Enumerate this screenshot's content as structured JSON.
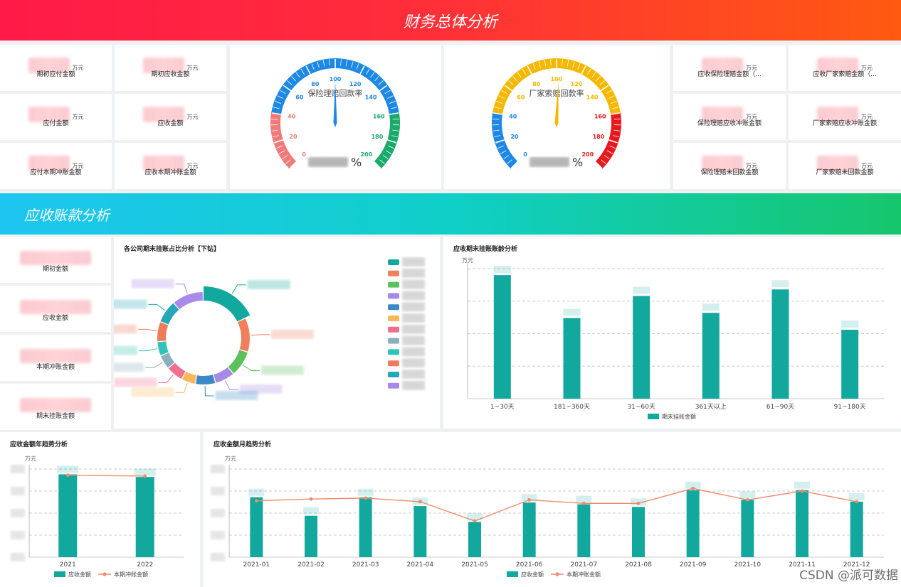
{
  "header": {
    "title": "财务总体分析"
  },
  "section2": {
    "title": "应收账款分析"
  },
  "unit": "万元",
  "left_kpis": [
    {
      "label": "期初应付金额"
    },
    {
      "label": "期初应收金额"
    },
    {
      "label": "应付金额"
    },
    {
      "label": "应收金额"
    },
    {
      "label": "应付本期冲账金额"
    },
    {
      "label": "应收本期冲账金额"
    }
  ],
  "right_kpis": [
    {
      "label": "应收保险理赔金额（..."
    },
    {
      "label": "应收厂家索赔金额（..."
    },
    {
      "label": "保险理赔应收冲账金额"
    },
    {
      "label": "厂家索赔应收冲账金额"
    },
    {
      "label": "保险理赔未回款金额"
    },
    {
      "label": "厂家索赔未回款金额"
    }
  ],
  "gauges": [
    {
      "title": "保险理赔回款率",
      "percent_sign": "%",
      "ticks": [
        "0",
        "20",
        "40",
        "60",
        "80",
        "100",
        "120",
        "140",
        "160",
        "180",
        "200"
      ],
      "value": 100,
      "colors": {
        "low": "#f07a7a",
        "mid": "#1e88e5",
        "high": "#1aaa6a",
        "needle": "#1e88e5"
      }
    },
    {
      "title": "厂家索赔回款率",
      "percent_sign": "%",
      "ticks": [
        "0",
        "20",
        "40",
        "60",
        "80",
        "100",
        "120",
        "140",
        "160",
        "180",
        "200"
      ],
      "value": 102,
      "colors": {
        "low": "#1e88e5",
        "mid": "#f5b800",
        "high": "#e8191e",
        "needle": "#f5b800"
      }
    }
  ],
  "ar_kpis": [
    {
      "label": "期初金额"
    },
    {
      "label": "应收金额"
    },
    {
      "label": "本期冲账金额"
    },
    {
      "label": "期末挂账金额"
    }
  ],
  "donut": {
    "title": "各公司期末挂账占比分析【下钻】",
    "colors": [
      "#13a89e",
      "#f07f5b",
      "#5cc15c",
      "#a68be6",
      "#3b88c8",
      "#f5b95a",
      "#f06f8e",
      "#8ab0bd",
      "#2ec4b6",
      "#ee7c58",
      "#26a6b9",
      "#a98ae8"
    ]
  },
  "chart_data": [
    {
      "type": "bar",
      "title": "应收期末挂账账龄分析",
      "ylabel": "万元",
      "categories": [
        "1~30天",
        "181~360天",
        "31~60天",
        "361天以上",
        "61~90天",
        "91~180天"
      ],
      "series": [
        {
          "name": "期末挂账金额",
          "values": [
            95,
            62,
            79,
            66,
            84,
            53
          ]
        }
      ],
      "ylim": [
        0,
        100
      ],
      "color": "#13a89e"
    },
    {
      "type": "bar",
      "title": "应收金额年趋势分析",
      "ylabel": "万元",
      "categories": [
        "2021",
        "2022"
      ],
      "series": [
        {
          "name": "应收金额",
          "values": [
            94,
            91
          ]
        },
        {
          "name": "本期冲账金额",
          "values": [
            93,
            92
          ]
        }
      ],
      "ylim": [
        0,
        100
      ],
      "colors": [
        "#13a89e",
        "#f08a6c"
      ]
    },
    {
      "type": "bar",
      "title": "应收金额月趋势分析",
      "ylabel": "万元",
      "categories": [
        "2021-01",
        "2021-02",
        "2021-03",
        "2021-04",
        "2021-05",
        "2021-06",
        "2021-07",
        "2021-08",
        "2021-09",
        "2021-10",
        "2021-11",
        "2021-12"
      ],
      "series": [
        {
          "name": "应收金额",
          "values": [
            68,
            47,
            68,
            58,
            40,
            62,
            60,
            57,
            76,
            65,
            76,
            63
          ]
        },
        {
          "name": "本期冲账金额",
          "values": [
            64,
            66,
            67,
            63,
            41,
            65,
            61,
            61,
            78,
            65,
            75,
            63
          ]
        }
      ],
      "ylim": [
        0,
        100
      ],
      "colors": [
        "#13a89e",
        "#f08a6c"
      ]
    }
  ],
  "watermark": "CSDN @派可数据"
}
